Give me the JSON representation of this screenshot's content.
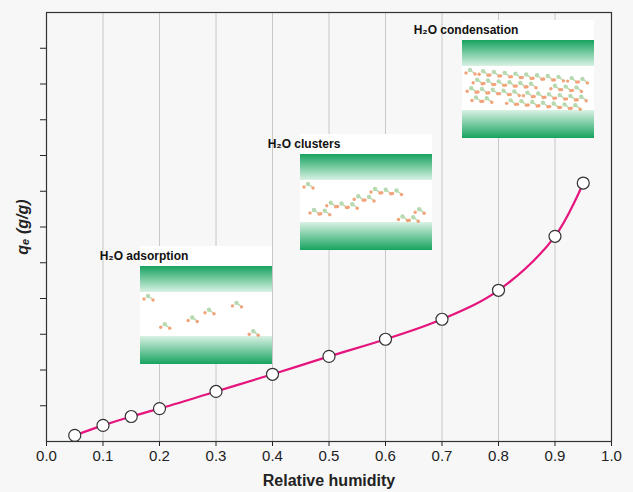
{
  "chart_data": {
    "type": "line",
    "x_label": "Relative humidity",
    "y_label": "qₑ (g/g)",
    "x": [
      0.05,
      0.1,
      0.15,
      0.2,
      0.3,
      0.4,
      0.5,
      0.6,
      0.7,
      0.8,
      0.9,
      0.95
    ],
    "values": [
      0.17,
      0.45,
      0.7,
      0.92,
      1.4,
      1.88,
      2.38,
      2.86,
      3.42,
      4.23,
      5.74,
      7.23
    ],
    "color": "#e5157d",
    "marker": "circle",
    "line_style": "solid",
    "xlim": [
      0,
      1
    ],
    "xticks": [
      {
        "value": 0,
        "label": "0.0"
      },
      0.1,
      0.2,
      0.3,
      0.4,
      0.5,
      0.6,
      0.7,
      0.8,
      0.9,
      {
        "value": 1,
        "label": "1.0"
      }
    ],
    "ylim": [
      0,
      12
    ],
    "yticks": [
      1,
      2,
      3,
      4,
      5,
      6,
      7,
      8,
      9,
      10,
      11
    ],
    "tick_labels": "x",
    "grid": "x",
    "annotations": [
      "H₂O adsorption",
      "H₂O clusters",
      "H₂O condensation"
    ]
  }
}
